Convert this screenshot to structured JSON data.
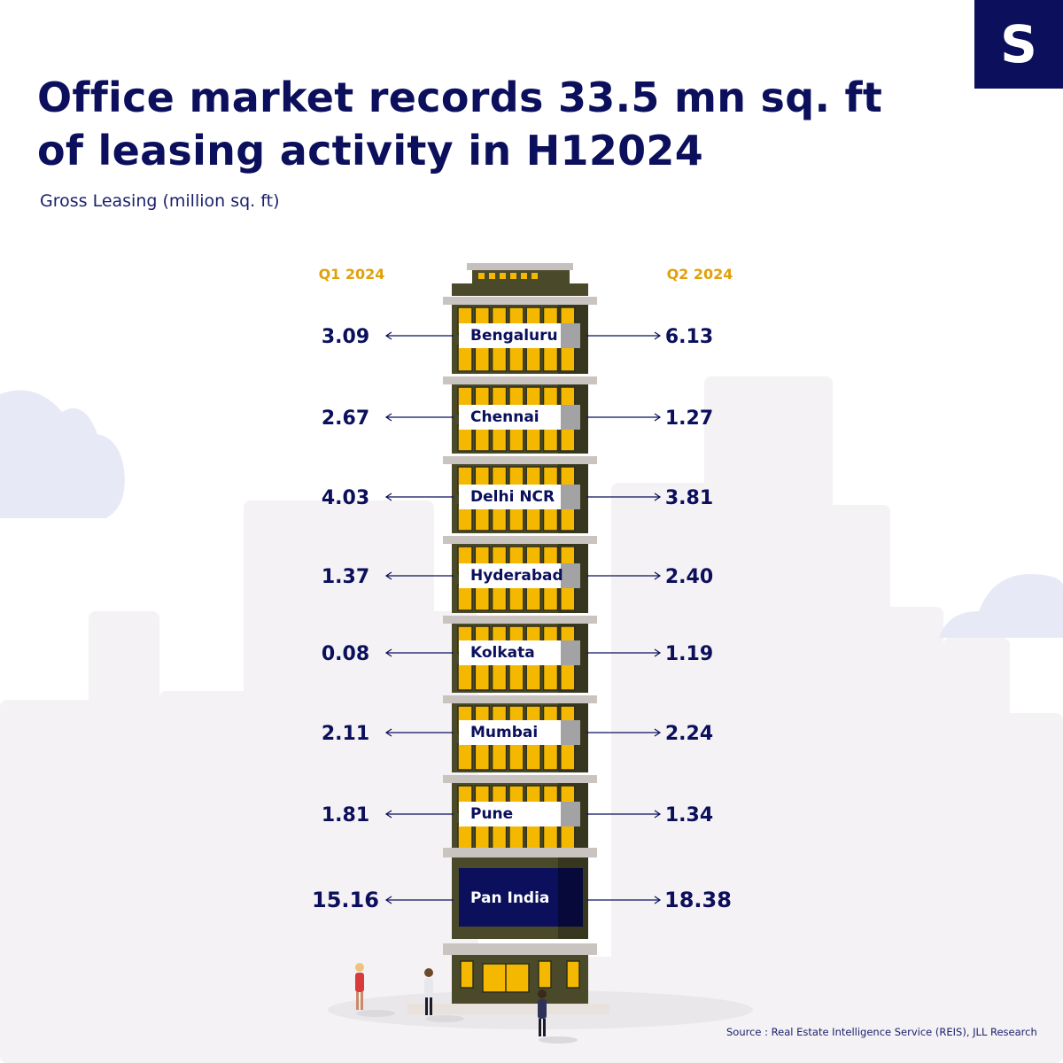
{
  "brand": {
    "logo_letter": "S",
    "navy": "#0b0f5c",
    "accent": "#e0a00c"
  },
  "title_lines": [
    "Office market records 33.5 mn sq. ft",
    "of leasing activity in H12024"
  ],
  "subtitle": "Gross Leasing (million sq. ft)",
  "source": "Source : Real Estate Intelligence Service (REIS), JLL Research",
  "chart_data": {
    "type": "table",
    "title": "Office market records 33.5 mn sq. ft of leasing activity in H12024",
    "unit": "million sq. ft",
    "column_headers": [
      "Q1 2024",
      "Q2 2024"
    ],
    "series": [
      {
        "name": "Q1 2024",
        "values": [
          "3.09",
          "2.67",
          "4.03",
          "1.37",
          "0.08",
          "2.11",
          "1.81",
          "15.16"
        ]
      },
      {
        "name": "Q2 2024",
        "values": [
          "6.13",
          "1.27",
          "3.81",
          "2.40",
          "1.19",
          "2.24",
          "1.34",
          "18.38"
        ]
      }
    ],
    "categories": [
      "Bengaluru",
      "Chennai",
      "Delhi NCR",
      "Hyderabad",
      "Kolkata",
      "Mumbai",
      "Pune",
      "Pan India"
    ],
    "highlight_category": "Pan India"
  }
}
